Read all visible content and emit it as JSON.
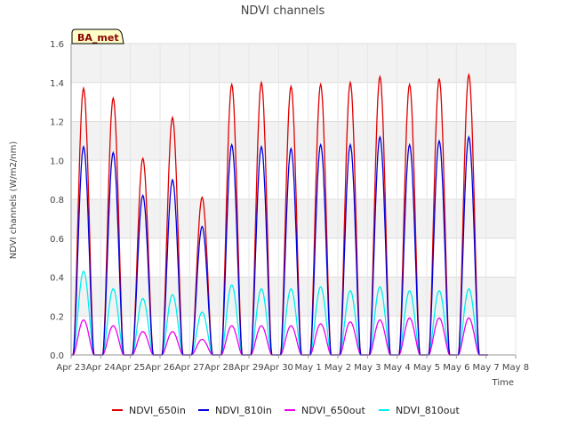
{
  "chart_data": {
    "type": "line",
    "title": "NDVI channels",
    "xlabel": "Time",
    "ylabel": "NDVI channels (W/m2/nm)",
    "ylim": [
      0.0,
      1.6
    ],
    "yticks": [
      0.0,
      0.2,
      0.4,
      0.6,
      0.8,
      1.0,
      1.2,
      1.4,
      1.6
    ],
    "ytick_labels": [
      "0.0",
      "0.2",
      "0.4",
      "0.6",
      "0.8",
      "1.0",
      "1.2",
      "1.4",
      "1.6"
    ],
    "xlim_days": [
      0,
      15
    ],
    "xtick_labels": [
      "Apr 23",
      "Apr 24",
      "Apr 25",
      "Apr 26",
      "Apr 27",
      "Apr 28",
      "Apr 29",
      "Apr 30",
      "May 1",
      "May 2",
      "May 3",
      "May 4",
      "May 5",
      "May 6",
      "May 7",
      "May 8"
    ],
    "badge": "BA_met",
    "legend_position": "bottom",
    "grid": true,
    "day_offsets": [
      0,
      1,
      2,
      3,
      4,
      5,
      6,
      7,
      8,
      9,
      10,
      11,
      12,
      13,
      14
    ],
    "series": [
      {
        "name": "NDVI_650in",
        "color": "#e00000",
        "daily_peaks": [
          1.37,
          1.32,
          1.01,
          1.22,
          0.81,
          1.39,
          1.4,
          1.38,
          1.39,
          1.4,
          1.43,
          1.39,
          1.42,
          1.44
        ]
      },
      {
        "name": "NDVI_810in",
        "color": "#0000dd",
        "daily_peaks": [
          1.07,
          1.04,
          0.82,
          0.9,
          0.66,
          1.08,
          1.07,
          1.06,
          1.08,
          1.08,
          1.12,
          1.08,
          1.1,
          1.12
        ]
      },
      {
        "name": "NDVI_650out",
        "color": "#ee00ee",
        "daily_peaks": [
          0.18,
          0.15,
          0.12,
          0.12,
          0.08,
          0.15,
          0.15,
          0.15,
          0.16,
          0.17,
          0.18,
          0.19,
          0.19,
          0.19
        ]
      },
      {
        "name": "NDVI_810out",
        "color": "#00eeee",
        "daily_peaks": [
          0.43,
          0.34,
          0.29,
          0.31,
          0.22,
          0.36,
          0.34,
          0.34,
          0.35,
          0.33,
          0.35,
          0.33,
          0.33,
          0.34
        ]
      }
    ]
  }
}
